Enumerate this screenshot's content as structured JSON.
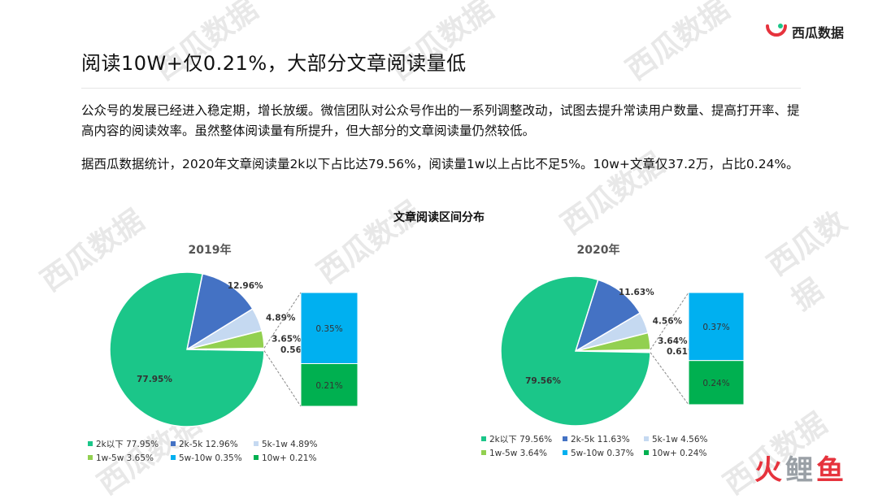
{
  "brand": {
    "name": "西瓜数据"
  },
  "header": {
    "title": "阅读10W+仅0.21%，大部分文章阅读量低"
  },
  "body": {
    "paragraph1": "公众号的发展已经进入稳定期，增长放缓。微信团队对公众号作出的一系列调整改动，试图去提升常读用户数量、提高打开率、提高内容的阅读效率。虽然整体阅读量有所提升，但大部分的文章阅读量仍然较低。",
    "paragraph2": "据西瓜数据统计，2020年文章阅读量2k以下占比达79.56%，阅读量1w以上占比不足5%。10w+文章仅37.2万，占比0.24%。"
  },
  "watermark": {
    "text": "西瓜数据"
  },
  "footer": {
    "logo": "火鲤鱼"
  },
  "colors": {
    "lt2k": "#1bc689",
    "2k5k": "#4472c4",
    "5k1w": "#c5d9f1",
    "1w5w": "#92d050",
    "5w10w": "#00b0f0",
    "10wplus": "#00b050",
    "brand_red": "#e6333d",
    "brand_green": "#1bc689"
  },
  "chart_data": [
    {
      "type": "pie",
      "title": "2019年",
      "shared_title": "文章阅读区间分布",
      "categories": [
        "2k以下",
        "2k-5k",
        "5k-1w",
        "1w-5w",
        "5w-10w",
        "10w+"
      ],
      "values": [
        77.95,
        12.96,
        4.89,
        3.65,
        0.35,
        0.21
      ],
      "labels": [
        "77.95%",
        "12.96%",
        "4.89%",
        "3.65%",
        "0.56%"
      ],
      "sub_bar": {
        "categories": [
          "5w-10w",
          "10w+"
        ],
        "values": [
          0.35,
          0.21
        ],
        "labels": [
          "0.35%",
          "0.21%"
        ]
      },
      "legend": [
        "2k以下 77.95%",
        "2k-5k 12.96%",
        "5k-1w 4.89%",
        "1w-5w 3.65%",
        "5w-10w 0.35%",
        "10w+  0.21%"
      ],
      "legend_position": "bottom"
    },
    {
      "type": "pie",
      "title": "2020年",
      "categories": [
        "2k以下",
        "2k-5k",
        "5k-1w",
        "1w-5w",
        "5w-10w",
        "10w+"
      ],
      "values": [
        79.56,
        11.63,
        4.56,
        3.64,
        0.37,
        0.24
      ],
      "labels": [
        "79.56%",
        "11.63%",
        "4.56%",
        "3.64%",
        "0.61%"
      ],
      "sub_bar": {
        "categories": [
          "5w-10w",
          "10w+"
        ],
        "values": [
          0.37,
          0.24
        ],
        "labels": [
          "0.37%",
          "0.24%"
        ]
      },
      "legend": [
        "2k以下 79.56%",
        "2k-5k 11.63%",
        "5k-1w 4.56%",
        "1w-5w 3.64%",
        "5w-10w 0.37%",
        "10w+ 0.24%"
      ],
      "legend_position": "bottom"
    }
  ]
}
